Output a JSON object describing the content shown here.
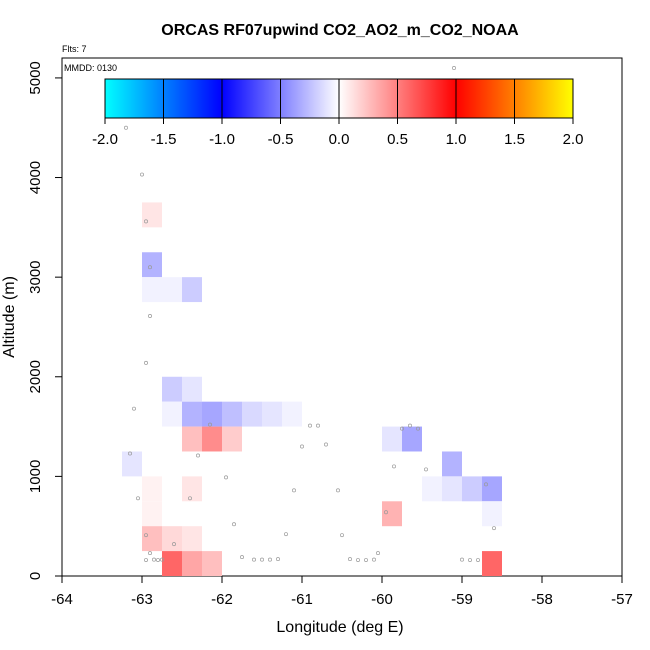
{
  "chart_data": {
    "type": "heatmap",
    "title": "ORCAS RF07upwind CO2_AO2_m_CO2_NOAA",
    "flights_note": "Flts: 7",
    "date_note": "MMDD: 0130",
    "xlabel": "Longitude (deg E)",
    "ylabel": "Altitude (m)",
    "xlim": [
      -64,
      -57
    ],
    "ylim": [
      0,
      5200
    ],
    "xticks": [
      -64,
      -63,
      -62,
      -61,
      -60,
      -59,
      -58,
      -57
    ],
    "yticks": [
      0,
      1000,
      2000,
      3000,
      4000,
      5000
    ],
    "grid": false,
    "colorbar": {
      "range": [
        -2.0,
        2.0
      ],
      "ticks": [
        -2.0,
        -1.5,
        -1.0,
        -0.5,
        0.0,
        0.5,
        1.0,
        1.5,
        2.0
      ],
      "tick_labels": [
        "-2.0",
        "-1.5",
        "-1.0",
        "-0.5",
        "0.0",
        "0.5",
        "1.0",
        "1.5",
        "2.0"
      ],
      "stops": [
        "#00ffff",
        "#0000ff",
        "#ffffff",
        "#ff0000",
        "#ffff00"
      ],
      "placement": "top"
    },
    "cell_size": {
      "lon": 0.25,
      "alt": 250
    },
    "cells": [
      {
        "lon": -63.25,
        "alt": 1000,
        "value": -0.1
      },
      {
        "lon": -63.0,
        "alt": 3500,
        "value": 0.1
      },
      {
        "lon": -63.0,
        "alt": 3000,
        "value": -0.3
      },
      {
        "lon": -63.0,
        "alt": 2750,
        "value": -0.05
      },
      {
        "lon": -62.75,
        "alt": 2750,
        "value": -0.05
      },
      {
        "lon": -62.5,
        "alt": 2750,
        "value": -0.2
      },
      {
        "lon": -63.0,
        "alt": 750,
        "value": 0.05
      },
      {
        "lon": -63.0,
        "alt": 500,
        "value": 0.05
      },
      {
        "lon": -63.0,
        "alt": 250,
        "value": 0.25
      },
      {
        "lon": -62.75,
        "alt": 250,
        "value": 0.15
      },
      {
        "lon": -62.5,
        "alt": 250,
        "value": 0.1
      },
      {
        "lon": -62.75,
        "alt": 0,
        "value": 0.6
      },
      {
        "lon": -62.5,
        "alt": 0,
        "value": 0.35
      },
      {
        "lon": -62.25,
        "alt": 0,
        "value": 0.25
      },
      {
        "lon": -62.75,
        "alt": 1750,
        "value": -0.2
      },
      {
        "lon": -62.5,
        "alt": 1750,
        "value": -0.1
      },
      {
        "lon": -62.75,
        "alt": 1500,
        "value": -0.05
      },
      {
        "lon": -62.5,
        "alt": 1500,
        "value": -0.3
      },
      {
        "lon": -62.25,
        "alt": 1500,
        "value": -0.35
      },
      {
        "lon": -62.0,
        "alt": 1500,
        "value": -0.25
      },
      {
        "lon": -61.75,
        "alt": 1500,
        "value": -0.15
      },
      {
        "lon": -61.5,
        "alt": 1500,
        "value": -0.1
      },
      {
        "lon": -61.25,
        "alt": 1500,
        "value": -0.05
      },
      {
        "lon": -62.5,
        "alt": 1250,
        "value": 0.25
      },
      {
        "lon": -62.25,
        "alt": 1250,
        "value": 0.45
      },
      {
        "lon": -62.0,
        "alt": 1250,
        "value": 0.2
      },
      {
        "lon": -62.5,
        "alt": 750,
        "value": 0.1
      },
      {
        "lon": -60.0,
        "alt": 1250,
        "value": -0.1
      },
      {
        "lon": -59.75,
        "alt": 1250,
        "value": -0.35
      },
      {
        "lon": -60.0,
        "alt": 500,
        "value": 0.3
      },
      {
        "lon": -59.25,
        "alt": 1000,
        "value": -0.3
      },
      {
        "lon": -59.5,
        "alt": 750,
        "value": -0.05
      },
      {
        "lon": -59.25,
        "alt": 750,
        "value": -0.1
      },
      {
        "lon": -59.0,
        "alt": 750,
        "value": -0.2
      },
      {
        "lon": -58.75,
        "alt": 750,
        "value": -0.35
      },
      {
        "lon": -58.75,
        "alt": 500,
        "value": -0.05
      },
      {
        "lon": -58.75,
        "alt": 0,
        "value": 0.6
      }
    ],
    "sample_points": [
      [
        -63.2,
        4500
      ],
      [
        -63.0,
        4030
      ],
      [
        -62.95,
        3560
      ],
      [
        -62.9,
        3100
      ],
      [
        -62.9,
        2610
      ],
      [
        -62.95,
        2140
      ],
      [
        -63.1,
        1680
      ],
      [
        -63.15,
        1230
      ],
      [
        -63.05,
        780
      ],
      [
        -62.95,
        410
      ],
      [
        -62.9,
        230
      ],
      [
        -62.95,
        160
      ],
      [
        -62.85,
        165
      ],
      [
        -62.8,
        160
      ],
      [
        -62.75,
        165
      ],
      [
        -62.6,
        320
      ],
      [
        -62.4,
        780
      ],
      [
        -62.3,
        1210
      ],
      [
        -62.15,
        1520
      ],
      [
        -61.95,
        990
      ],
      [
        -61.85,
        520
      ],
      [
        -61.75,
        190
      ],
      [
        -61.6,
        165
      ],
      [
        -61.5,
        165
      ],
      [
        -61.4,
        165
      ],
      [
        -61.3,
        170
      ],
      [
        -61.2,
        420
      ],
      [
        -61.1,
        860
      ],
      [
        -61.0,
        1300
      ],
      [
        -60.9,
        1510
      ],
      [
        -60.8,
        1510
      ],
      [
        -60.7,
        1320
      ],
      [
        -60.55,
        860
      ],
      [
        -60.5,
        410
      ],
      [
        -60.4,
        170
      ],
      [
        -60.3,
        160
      ],
      [
        -60.2,
        160
      ],
      [
        -60.1,
        165
      ],
      [
        -60.05,
        230
      ],
      [
        -59.95,
        640
      ],
      [
        -59.85,
        1100
      ],
      [
        -59.75,
        1480
      ],
      [
        -59.65,
        1510
      ],
      [
        -59.55,
        1480
      ],
      [
        -59.45,
        1070
      ],
      [
        -59.0,
        165
      ],
      [
        -58.9,
        160
      ],
      [
        -58.8,
        160
      ],
      [
        -58.7,
        920
      ],
      [
        -58.6,
        480
      ],
      [
        -59.1,
        5100
      ]
    ]
  }
}
